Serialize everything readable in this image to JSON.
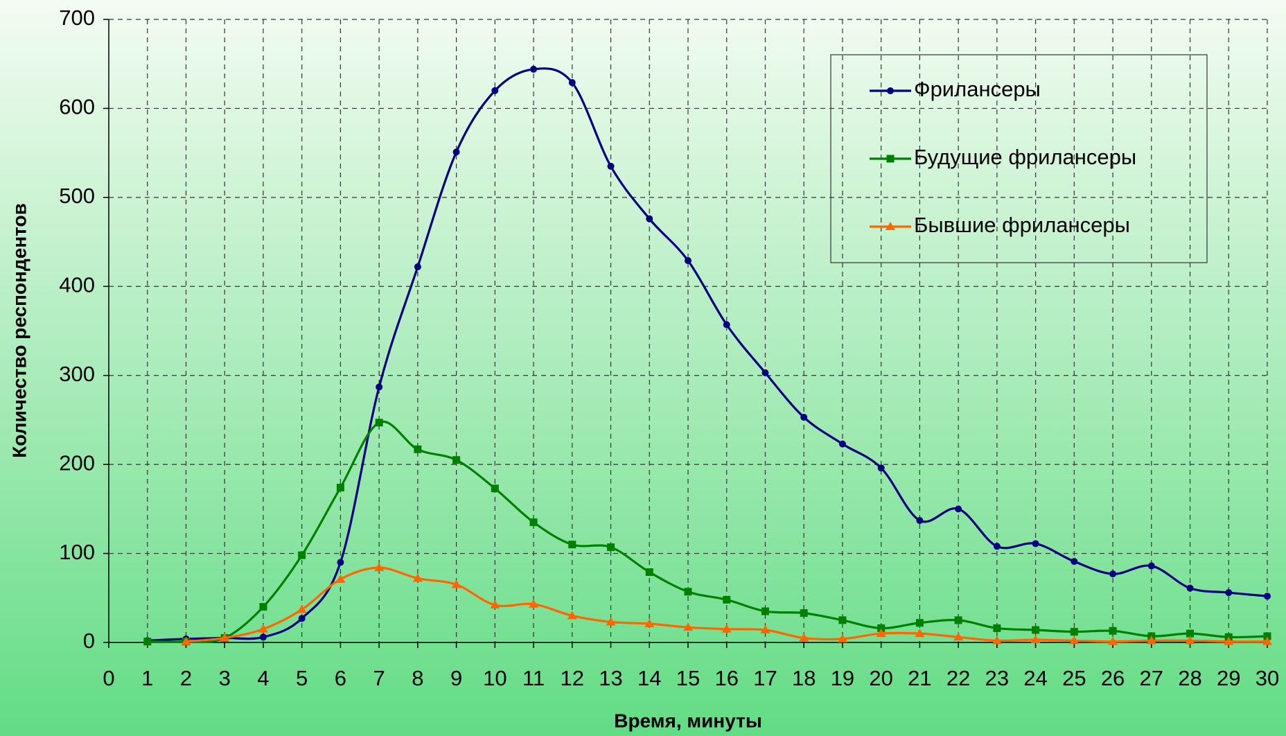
{
  "chart_data": {
    "type": "line",
    "xlabel": "Время, минуты",
    "ylabel": "Количество респондентов",
    "x": [
      1,
      2,
      3,
      4,
      5,
      6,
      7,
      8,
      9,
      10,
      11,
      12,
      13,
      14,
      15,
      16,
      17,
      18,
      19,
      20,
      21,
      22,
      23,
      24,
      25,
      26,
      27,
      28,
      29,
      30
    ],
    "series": [
      {
        "name": "Фрилансеры",
        "color": "#000080",
        "marker": "circle",
        "values": [
          2,
          4,
          5,
          6,
          27,
          90,
          287,
          422,
          551,
          620,
          644,
          629,
          535,
          476,
          429,
          357,
          303,
          253,
          223,
          196,
          137,
          150,
          108,
          111,
          91,
          77,
          86,
          61,
          56,
          52
        ]
      },
      {
        "name": "Будущие фрилансеры",
        "color": "#008000",
        "marker": "square",
        "values": [
          1,
          1,
          5,
          40,
          98,
          174,
          247,
          217,
          205,
          173,
          135,
          110,
          107,
          79,
          57,
          48,
          35,
          33,
          25,
          16,
          22,
          25,
          16,
          14,
          12,
          13,
          7,
          10,
          6,
          7
        ]
      },
      {
        "name": "Бывшие фрилансеры",
        "color": "#ff6600",
        "marker": "triangle",
        "values": [
          null,
          1,
          5,
          15,
          37,
          71,
          84,
          72,
          65,
          42,
          43,
          30,
          23,
          21,
          17,
          15,
          14,
          5,
          4,
          10,
          10,
          6,
          2,
          3,
          2,
          1,
          2,
          2,
          1,
          1
        ]
      }
    ],
    "xlim": [
      0,
      30
    ],
    "xticks": [
      0,
      1,
      2,
      3,
      4,
      5,
      6,
      7,
      8,
      9,
      10,
      11,
      12,
      13,
      14,
      15,
      16,
      17,
      18,
      19,
      20,
      21,
      22,
      23,
      24,
      25,
      26,
      27,
      28,
      29,
      30
    ],
    "ylim": [
      0,
      700
    ],
    "yticks": [
      0,
      100,
      200,
      300,
      400,
      500,
      600,
      700
    ],
    "grid": true,
    "legend": "upper right"
  }
}
